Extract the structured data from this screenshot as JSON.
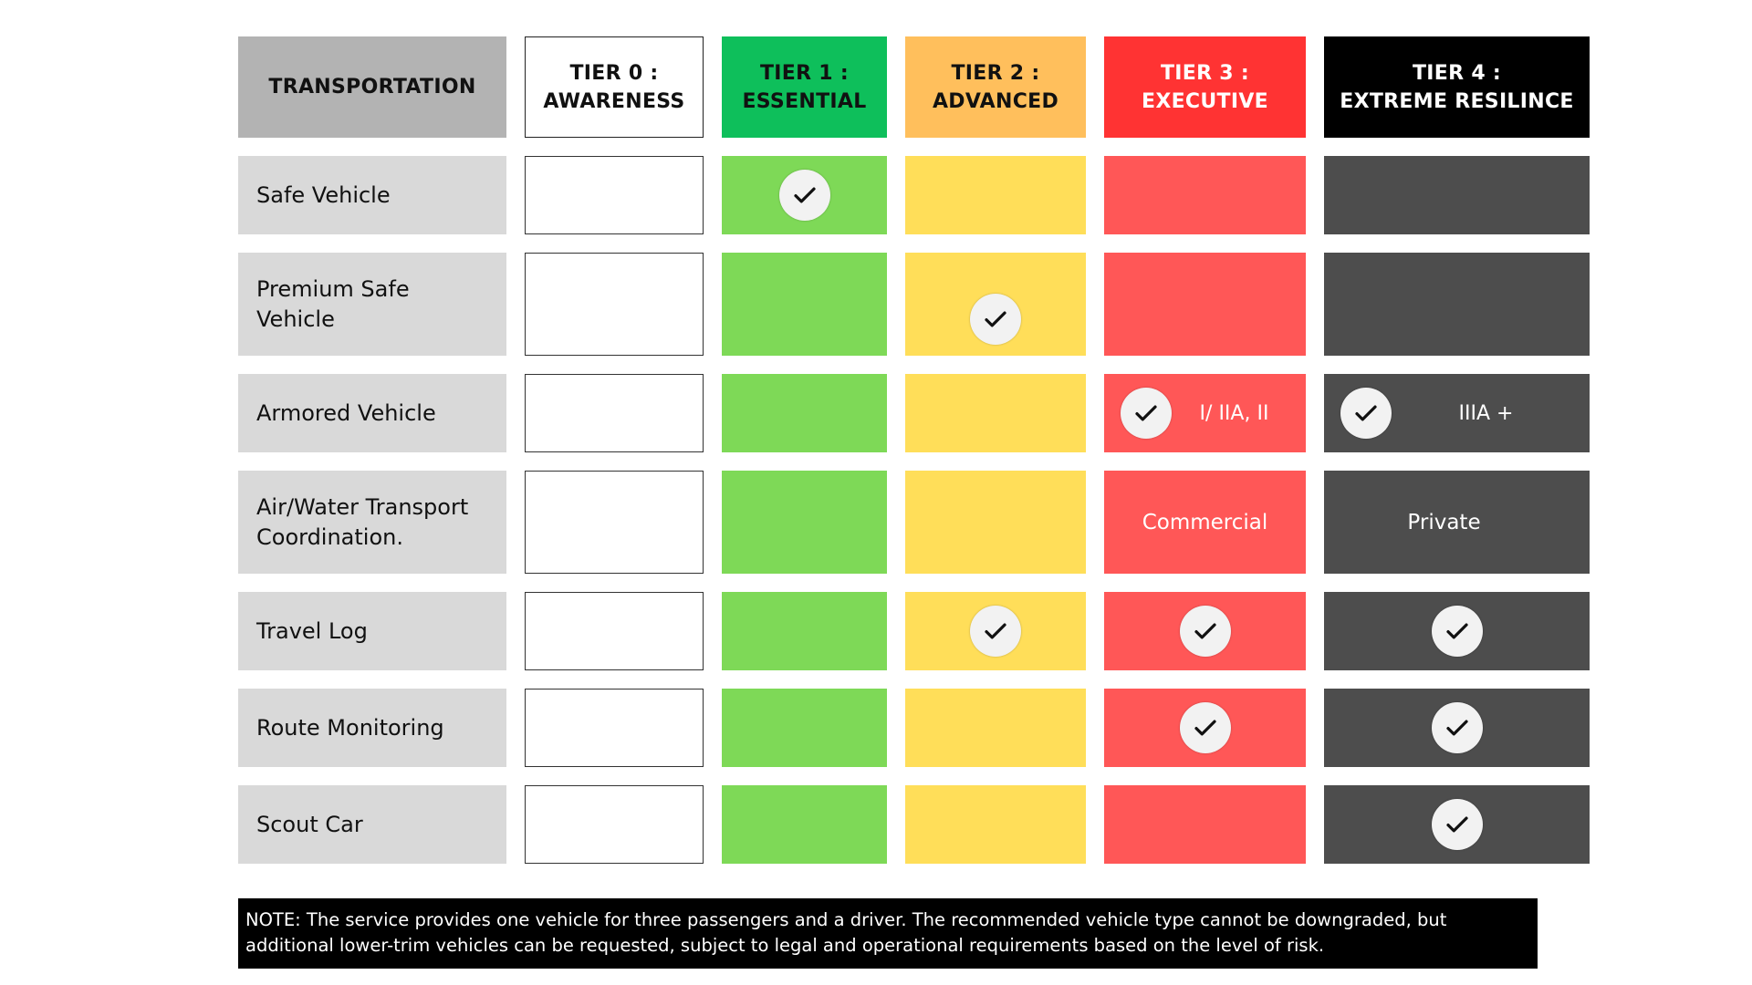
{
  "header": {
    "label": "TRANSPORTATION",
    "tiers": [
      "TIER 0 :\nAWARENESS",
      "TIER 1 :\nESSENTIAL",
      "TIER 2 :\nADVANCED",
      "TIER 3 :\nEXECUTIVE",
      "TIER 4 :\nEXTREME RESILINCE"
    ]
  },
  "rows": [
    {
      "label": "Safe Vehicle",
      "t3_text": "",
      "t4_text": ""
    },
    {
      "label": "Premium Safe Vehicle",
      "t3_text": "",
      "t4_text": ""
    },
    {
      "label": "Armored Vehicle",
      "t3_text": "I/ IIA, II",
      "t4_text": "IIIA +"
    },
    {
      "label": "Air/Water Transport Coordination.",
      "t3_text": "Commercial",
      "t4_text": "Private"
    },
    {
      "label": "Travel Log",
      "t3_text": "",
      "t4_text": ""
    },
    {
      "label": "Route Monitoring",
      "t3_text": "",
      "t4_text": ""
    },
    {
      "label": "Scout Car",
      "t3_text": "",
      "t4_text": ""
    }
  ],
  "checks": {
    "Safe Vehicle": [
      "t1"
    ],
    "Premium Safe Vehicle": [
      "t2"
    ],
    "Armored Vehicle": [
      "t3",
      "t4"
    ],
    "Air/Water Transport Coordination.": [],
    "Travel Log": [
      "t2",
      "t3",
      "t4"
    ],
    "Route Monitoring": [
      "t3",
      "t4"
    ],
    "Scout Car": [
      "t4"
    ]
  },
  "icons": {
    "check": "check-icon"
  },
  "colors": {
    "tier0": "#ffffff",
    "tier1": "#7ed957",
    "tier2": "#ffde59",
    "tier3": "#ff5757",
    "tier4": "#4d4d4d",
    "label": "#d9d9d9"
  },
  "note": "NOTE: The service provides one vehicle for three passengers and a driver. The recommended vehicle type cannot be downgraded, but additional lower-trim vehicles can be requested, subject to legal and operational requirements based on the level of risk."
}
